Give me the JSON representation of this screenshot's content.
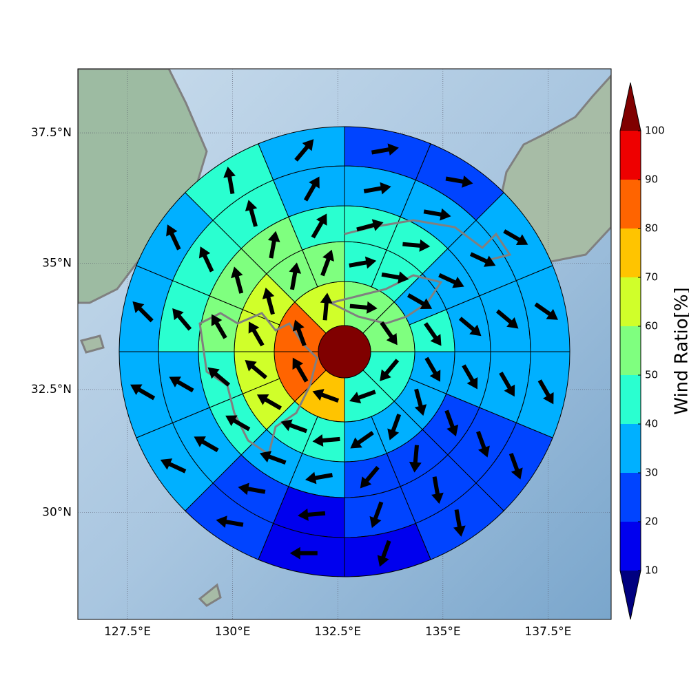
{
  "chart_data": {
    "type": "polar-sector-map",
    "xlim": [
      126.32,
      139.0
    ],
    "ylim": [
      27.77,
      38.7
    ],
    "projection": "mercator",
    "grid": true,
    "xticks": [
      {
        "value": 127.5,
        "label": "127.5°E"
      },
      {
        "value": 130,
        "label": "130°E"
      },
      {
        "value": 132.5,
        "label": "132.5°E"
      },
      {
        "value": 135,
        "label": "135°E"
      },
      {
        "value": 137.5,
        "label": "137.5°E"
      }
    ],
    "yticks": [
      {
        "value": 30,
        "label": "30°N"
      },
      {
        "value": 32.5,
        "label": "32.5°N"
      },
      {
        "value": 35,
        "label": "35°N"
      },
      {
        "value": 37.5,
        "label": "37.5°N"
      }
    ],
    "colorbar": {
      "label": "Wind Ratio[%]",
      "levels": [
        10,
        20,
        30,
        40,
        50,
        60,
        70,
        80,
        90,
        100
      ],
      "colors": [
        "#0000ee",
        "#0044ff",
        "#00b0ff",
        "#2affd0",
        "#7fff7f",
        "#d0ff2a",
        "#ffc400",
        "#ff6400",
        "#ee0000"
      ],
      "under_color": "#000080",
      "over_color": "#800000"
    },
    "center_value": 105,
    "rings": [
      {
        "values": [
          55,
          55,
          45,
          45,
          75,
          85,
          85,
          65
        ],
        "directions": [
          95,
          145,
          220,
          250,
          290,
          330,
          340,
          5
        ]
      },
      {
        "values": [
          45,
          45,
          35,
          45,
          35,
          35,
          35,
          35,
          45,
          45,
          65,
          65,
          65,
          65,
          55,
          55
        ],
        "directions": [
          80,
          100,
          120,
          145,
          150,
          165,
          200,
          235,
          265,
          290,
          300,
          310,
          330,
          345,
          10,
          20
        ]
      },
      {
        "values": [
          45,
          45,
          35,
          35,
          35,
          25,
          25,
          25,
          35,
          35,
          45,
          45,
          55,
          55,
          55,
          45
        ],
        "directions": [
          75,
          95,
          115,
          130,
          150,
          160,
          185,
          220,
          260,
          290,
          300,
          310,
          330,
          345,
          10,
          30
        ]
      },
      {
        "values": [
          35,
          35,
          35,
          35,
          35,
          25,
          25,
          25,
          15,
          25,
          35,
          35,
          45,
          45,
          45,
          35
        ],
        "directions": [
          80,
          100,
          115,
          130,
          150,
          160,
          170,
          200,
          265,
          280,
          300,
          300,
          320,
          335,
          345,
          30
        ]
      },
      {
        "values": [
          25,
          25,
          35,
          35,
          35,
          25,
          25,
          15,
          15,
          25,
          35,
          35,
          35,
          35,
          45,
          35
        ],
        "directions": [
          80,
          100,
          120,
          125,
          150,
          160,
          170,
          200,
          270,
          280,
          295,
          300,
          315,
          335,
          350,
          40
        ]
      }
    ]
  }
}
